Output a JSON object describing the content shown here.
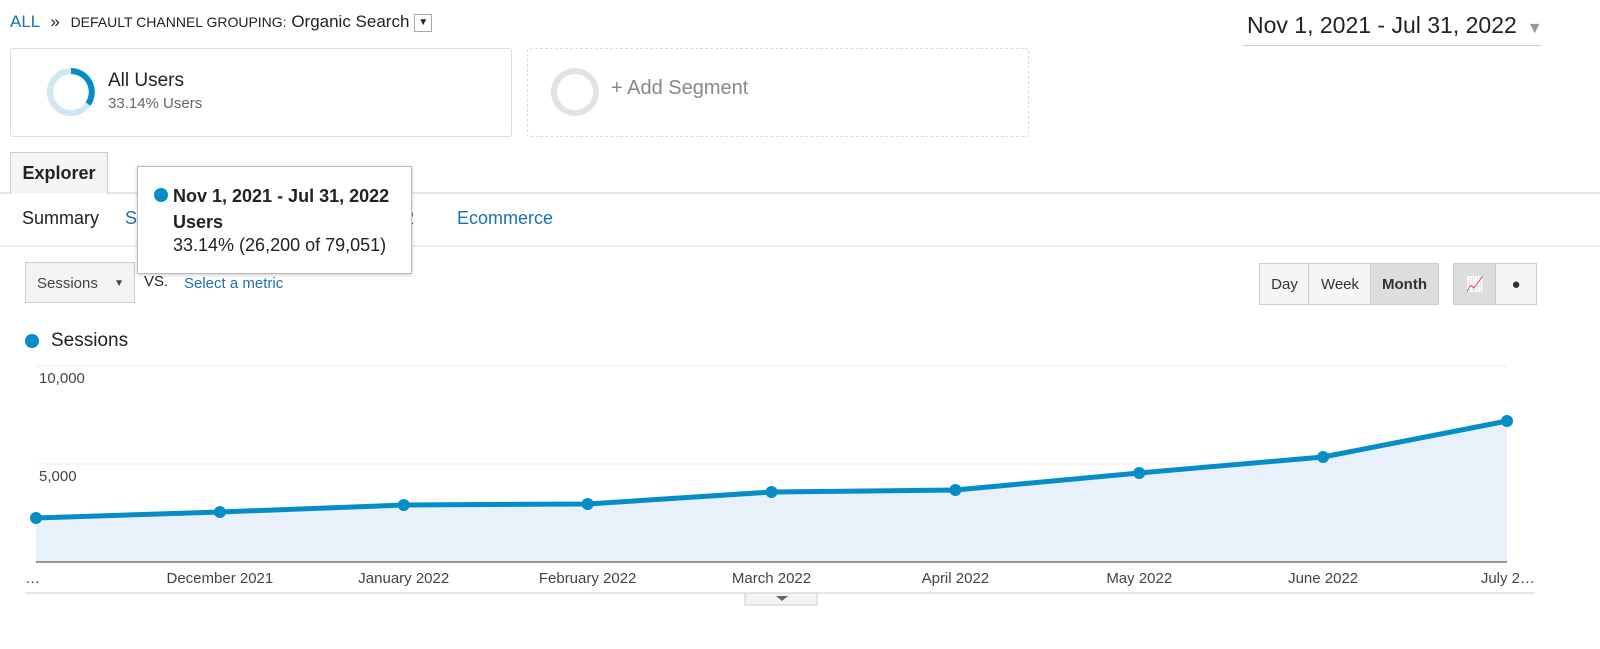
{
  "breadcrumb": {
    "root": "ALL",
    "separator": "»",
    "label": "DEFAULT CHANNEL GROUPING:",
    "value": "Organic Search"
  },
  "date_range": "Nov 1, 2021 - Jul 31, 2022",
  "segments": {
    "active": {
      "name": "All Users",
      "detail": "33.14% Users"
    },
    "add": "+ Add Segment"
  },
  "tab": "Explorer",
  "subtabs": [
    "Summary",
    "S",
    "t 2",
    "Ecommerce"
  ],
  "tooltip": {
    "title": "Nov 1, 2021 - Jul 31, 2022",
    "metric": "Users",
    "detail": "33.14% (26,200 of 79,051)"
  },
  "controls": {
    "metric": "Sessions",
    "vs": "VS.",
    "select": "Select a metric",
    "periods": [
      "Day",
      "Week",
      "Month"
    ]
  },
  "chart_data": {
    "type": "area",
    "categories": [
      "…",
      "December 2021",
      "January 2022",
      "February 2022",
      "March 2022",
      "April 2022",
      "May 2022",
      "June 2022",
      "July 2…"
    ],
    "series": [
      {
        "name": "Sessions",
        "color": "#058dc7",
        "values": [
          2245,
          2551,
          2908,
          2959,
          3571,
          3673,
          4541,
          5357,
          7194
        ]
      }
    ],
    "ylim": [
      0,
      10000
    ],
    "yticks": [
      {
        "value": 5000,
        "label": "5,000"
      },
      {
        "value": 10000,
        "label": "10,000"
      }
    ],
    "grid": true
  }
}
